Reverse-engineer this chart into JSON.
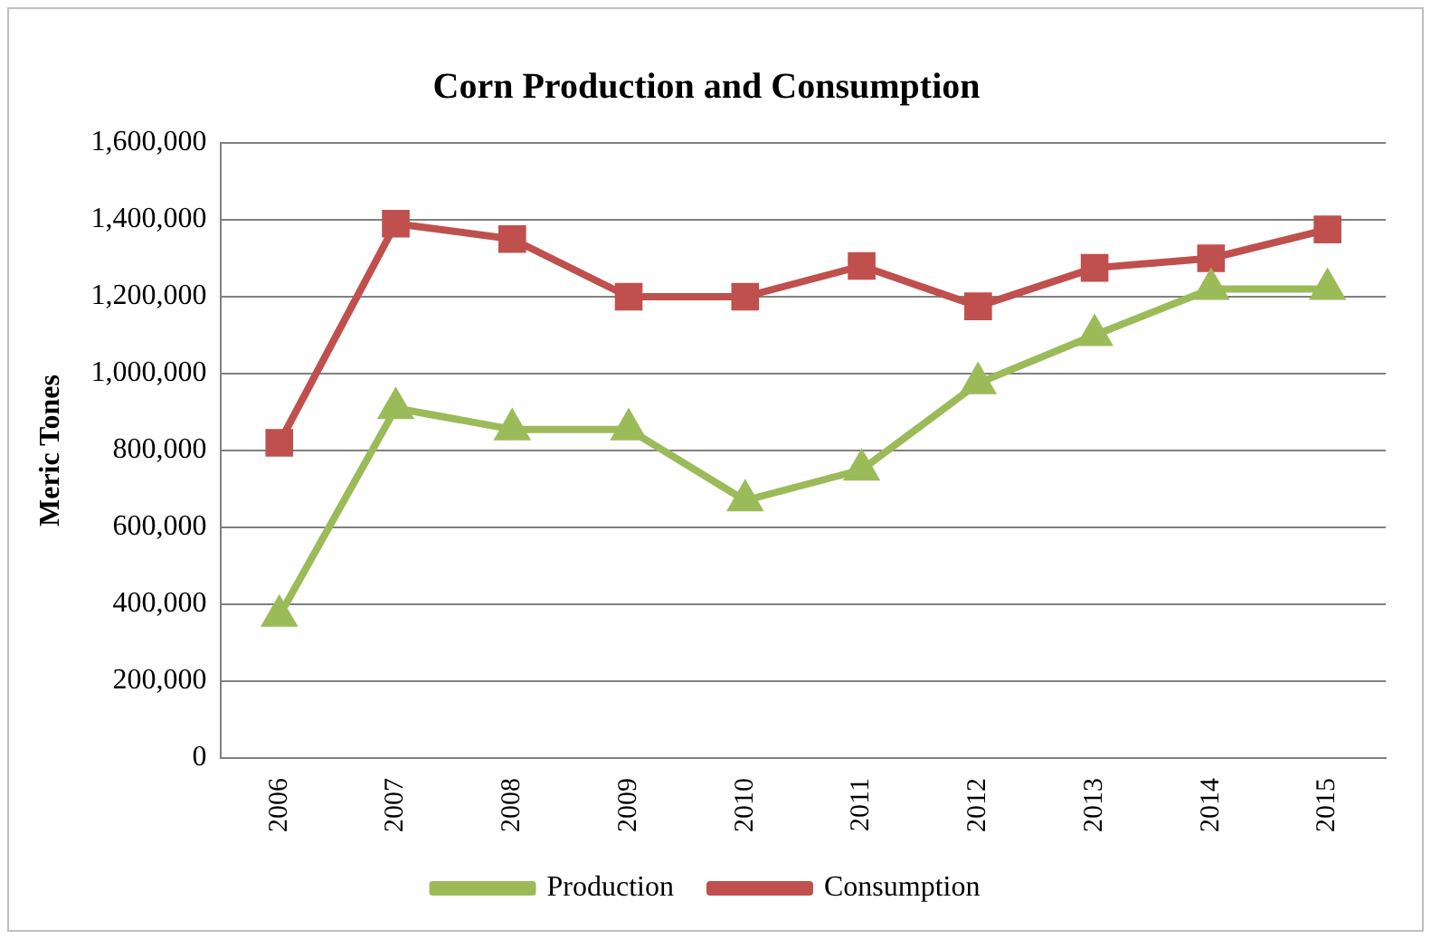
{
  "chart_data": {
    "type": "line",
    "title": "Corn Production and Consumption",
    "ylabel": "Meric Tones",
    "categories": [
      "2006",
      "2007",
      "2008",
      "2009",
      "2010",
      "2011",
      "2012",
      "2013",
      "2014",
      "2015"
    ],
    "series": [
      {
        "name": "Production",
        "color": "#9bbb59",
        "marker": "triangle",
        "values": [
          370000,
          910000,
          855000,
          855000,
          670000,
          750000,
          975000,
          1100000,
          1220000,
          1220000
        ]
      },
      {
        "name": "Consumption",
        "color": "#c0504d",
        "marker": "square",
        "values": [
          820000,
          1390000,
          1350000,
          1200000,
          1200000,
          1280000,
          1175000,
          1275000,
          1300000,
          1375000
        ]
      }
    ],
    "ylim": [
      0,
      1600000
    ],
    "yticks": [
      0,
      {
        "value": 200000,
        "label": "200,000"
      },
      {
        "value": 400000,
        "label": "400,000"
      },
      {
        "value": 600000,
        "label": "600,000"
      },
      {
        "value": 800000,
        "label": "800,000"
      },
      {
        "value": 1000000,
        "label": "1,000,000"
      },
      {
        "value": 1200000,
        "label": "1,200,000"
      },
      {
        "value": 1400000,
        "label": "1,400,000"
      },
      {
        "value": 1600000,
        "label": "1,600,000"
      }
    ],
    "grid": "y",
    "legend": "bottom",
    "line_style": "solid"
  }
}
